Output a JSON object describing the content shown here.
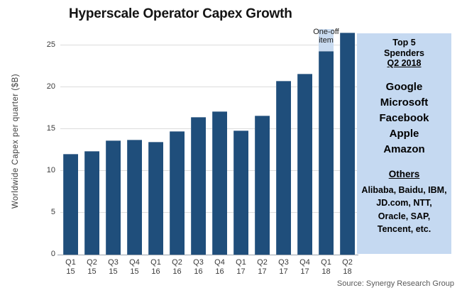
{
  "title": "Hyperscale Operator Capex Growth",
  "chart_data": {
    "type": "bar",
    "title": "Hyperscale Operator Capex Growth",
    "xlabel": "",
    "ylabel": "Worldwide Capex per quarter ($B)",
    "ylim": [
      0,
      27
    ],
    "yticks": [
      0,
      5,
      10,
      15,
      20,
      25
    ],
    "grid": true,
    "categories": [
      "Q1 15",
      "Q2 15",
      "Q3 15",
      "Q4 15",
      "Q1 16",
      "Q2 16",
      "Q3 16",
      "Q4 16",
      "Q1 17",
      "Q2 17",
      "Q3 17",
      "Q4 17",
      "Q1 18",
      "Q2 18"
    ],
    "values": [
      12.0,
      12.4,
      13.6,
      13.7,
      13.5,
      14.7,
      16.4,
      17.1,
      14.8,
      16.6,
      20.7,
      21.6,
      24.3,
      26.5
    ],
    "one_off": {
      "index": 12,
      "value": 2.6,
      "label": "One-off item"
    },
    "colors": {
      "bar": "#1F4E7B",
      "one_off": "#C9DBF0",
      "gridline": "#dcdcdc"
    }
  },
  "sidebar": {
    "heading_line1": "Top 5",
    "heading_line2": "Spenders",
    "quarter_label": "Q2 2018",
    "top5": [
      "Google",
      "Microsoft",
      "Facebook",
      "Apple",
      "Amazon"
    ],
    "others_heading": "Others",
    "others_list": "Alibaba, Baidu, IBM, JD.com, NTT, Oracle, SAP, Tencent, etc."
  },
  "source": "Source: Synergy Research Group"
}
